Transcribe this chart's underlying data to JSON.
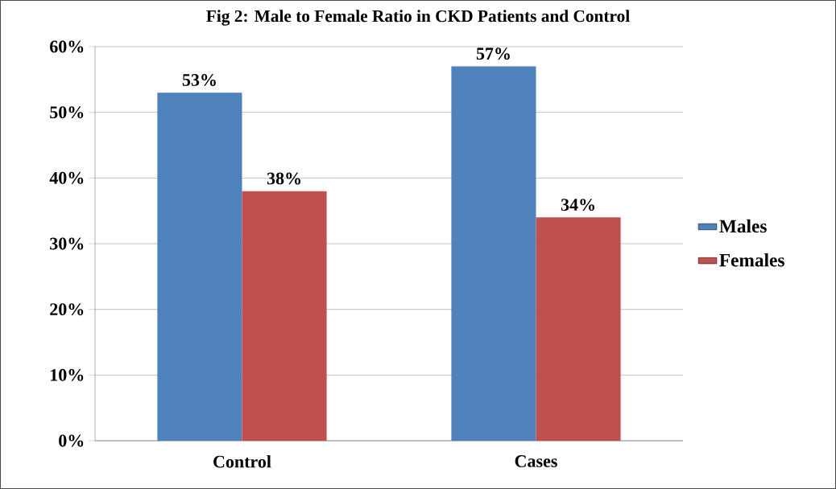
{
  "chart_data": {
    "type": "bar",
    "title": "Fig 2: Male to Female Ratio in CKD Patients and Control",
    "categories": [
      "Control",
      "Cases"
    ],
    "series": [
      {
        "name": "Males",
        "color": "#4f81bd",
        "values": [
          53,
          57
        ],
        "value_labels": [
          "53%",
          "57%"
        ]
      },
      {
        "name": "Females",
        "color": "#c0504d",
        "values": [
          38,
          34
        ],
        "value_labels": [
          "38%",
          "34%"
        ]
      }
    ],
    "ylim": [
      0,
      60
    ],
    "yticks": [
      {
        "value": 0,
        "label": "0%"
      },
      {
        "value": 10,
        "label": "10%"
      },
      {
        "value": 20,
        "label": "20%"
      },
      {
        "value": 30,
        "label": "30%"
      },
      {
        "value": 40,
        "label": "40%"
      },
      {
        "value": 50,
        "label": "50%"
      },
      {
        "value": 60,
        "label": "60%"
      }
    ],
    "grid": "y",
    "legend": "right"
  }
}
